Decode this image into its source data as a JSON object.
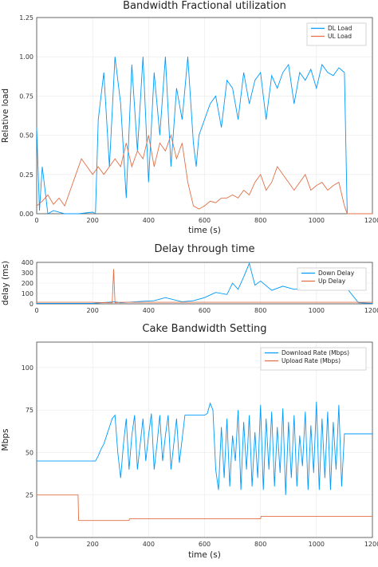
{
  "colors": {
    "series1": "#009afa",
    "series2": "#e26f46"
  },
  "chart_data": [
    {
      "type": "line",
      "title": "Bandwidth Fractional utilization",
      "xlabel": "time (s)",
      "ylabel": "Relative load",
      "xlim": [
        0,
        1200
      ],
      "ylim": [
        0,
        1.25
      ],
      "xticks": [
        "0",
        "200",
        "400",
        "600",
        "800",
        "1000",
        "1200"
      ],
      "yticks": [
        "0.00",
        "0.25",
        "0.50",
        "0.75",
        "1.00",
        "1.25"
      ],
      "grid": true,
      "legend": "top-right",
      "series": [
        {
          "name": "DL Load",
          "x": [
            0,
            10,
            20,
            40,
            60,
            100,
            150,
            200,
            210,
            220,
            240,
            260,
            280,
            300,
            320,
            340,
            360,
            380,
            400,
            420,
            440,
            460,
            480,
            500,
            520,
            540,
            560,
            570,
            580,
            600,
            620,
            640,
            660,
            680,
            700,
            720,
            740,
            760,
            780,
            800,
            820,
            840,
            860,
            880,
            900,
            920,
            940,
            960,
            980,
            1000,
            1020,
            1040,
            1060,
            1080,
            1100,
            1110,
            1150,
            1200
          ],
          "values": [
            0.55,
            0.02,
            0.3,
            0.0,
            0.02,
            0.0,
            0.0,
            0.01,
            0.0,
            0.6,
            0.9,
            0.3,
            1.0,
            0.7,
            0.1,
            0.95,
            0.4,
            1.0,
            0.2,
            0.9,
            0.5,
            1.0,
            0.3,
            0.8,
            0.6,
            1.0,
            0.45,
            0.3,
            0.5,
            0.6,
            0.7,
            0.75,
            0.55,
            0.85,
            0.8,
            0.6,
            0.9,
            0.7,
            0.85,
            0.9,
            0.6,
            0.88,
            0.8,
            0.9,
            0.95,
            0.7,
            0.9,
            0.85,
            0.92,
            0.8,
            0.95,
            0.9,
            0.88,
            0.93,
            0.9,
            0.0,
            0.0,
            0.0
          ]
        },
        {
          "name": "UL Load",
          "x": [
            0,
            20,
            40,
            60,
            80,
            100,
            120,
            140,
            160,
            180,
            200,
            220,
            240,
            260,
            280,
            300,
            320,
            340,
            360,
            380,
            400,
            420,
            440,
            460,
            480,
            500,
            520,
            540,
            560,
            580,
            600,
            620,
            640,
            660,
            680,
            700,
            720,
            740,
            760,
            780,
            800,
            820,
            840,
            860,
            880,
            900,
            920,
            940,
            960,
            980,
            1000,
            1020,
            1040,
            1060,
            1080,
            1100,
            1110,
            1150,
            1200
          ],
          "values": [
            0.05,
            0.08,
            0.12,
            0.06,
            0.1,
            0.05,
            0.15,
            0.25,
            0.35,
            0.3,
            0.25,
            0.3,
            0.25,
            0.3,
            0.35,
            0.3,
            0.45,
            0.3,
            0.4,
            0.35,
            0.5,
            0.3,
            0.45,
            0.4,
            0.5,
            0.35,
            0.45,
            0.2,
            0.05,
            0.03,
            0.05,
            0.08,
            0.07,
            0.1,
            0.1,
            0.12,
            0.1,
            0.15,
            0.12,
            0.2,
            0.25,
            0.15,
            0.2,
            0.3,
            0.25,
            0.2,
            0.15,
            0.2,
            0.25,
            0.15,
            0.18,
            0.2,
            0.15,
            0.18,
            0.2,
            0.05,
            0.0,
            0.0,
            0.0
          ]
        }
      ]
    },
    {
      "type": "line",
      "title": "Delay through time",
      "xlabel": "",
      "ylabel": "delay (ms)",
      "xlim": [
        0,
        1200
      ],
      "ylim": [
        0,
        400
      ],
      "xticks": [
        "0",
        "200",
        "400",
        "600",
        "800",
        "1000",
        "1200"
      ],
      "yticks": [
        "0",
        "100",
        "200",
        "300",
        "400"
      ],
      "grid": true,
      "legend": "top-right",
      "series": [
        {
          "name": "Down Delay",
          "x": [
            0,
            100,
            200,
            280,
            300,
            380,
            420,
            460,
            520,
            560,
            600,
            640,
            680,
            700,
            720,
            740,
            760,
            780,
            800,
            840,
            880,
            920,
            960,
            1000,
            1040,
            1080,
            1100,
            1150,
            1200
          ],
          "values": [
            5,
            5,
            5,
            20,
            10,
            25,
            30,
            60,
            20,
            30,
            60,
            110,
            90,
            200,
            140,
            260,
            390,
            180,
            220,
            130,
            170,
            140,
            150,
            250,
            160,
            170,
            180,
            10,
            5
          ]
        },
        {
          "name": "Up Delay",
          "x": [
            0,
            100,
            200,
            270,
            275,
            280,
            300,
            400,
            500,
            600,
            700,
            800,
            900,
            1000,
            1100,
            1200
          ],
          "values": [
            15,
            15,
            15,
            10,
            335,
            10,
            15,
            15,
            15,
            15,
            15,
            15,
            15,
            15,
            15,
            15
          ]
        }
      ]
    },
    {
      "type": "line",
      "title": "Cake Bandwidth Setting",
      "xlabel": "time (s)",
      "ylabel": "Mbps",
      "xlim": [
        0,
        1200
      ],
      "ylim": [
        0,
        115
      ],
      "xticks": [
        "0",
        "200",
        "400",
        "600",
        "800",
        "1000",
        "1200"
      ],
      "yticks": [
        "0",
        "25",
        "50",
        "75",
        "100"
      ],
      "grid": true,
      "legend": "top-right",
      "series": [
        {
          "name": "Download Rate (Mbps)",
          "x": [
            0,
            210,
            220,
            230,
            240,
            250,
            260,
            270,
            280,
            290,
            300,
            310,
            320,
            330,
            340,
            350,
            360,
            370,
            380,
            390,
            400,
            410,
            420,
            430,
            440,
            450,
            460,
            470,
            480,
            490,
            500,
            510,
            520,
            530,
            540,
            550,
            560,
            570,
            580,
            590,
            600,
            610,
            620,
            630,
            640,
            650,
            660,
            670,
            680,
            690,
            700,
            710,
            720,
            730,
            740,
            750,
            760,
            770,
            780,
            790,
            800,
            810,
            820,
            830,
            840,
            850,
            860,
            870,
            880,
            890,
            900,
            910,
            920,
            930,
            940,
            950,
            960,
            970,
            980,
            990,
            1000,
            1010,
            1020,
            1030,
            1040,
            1050,
            1060,
            1070,
            1080,
            1090,
            1100,
            1200
          ],
          "values": [
            45,
            45,
            48,
            52,
            55,
            60,
            65,
            70,
            72,
            50,
            35,
            55,
            70,
            40,
            60,
            72,
            40,
            55,
            70,
            45,
            60,
            73,
            40,
            55,
            72,
            45,
            60,
            72,
            40,
            55,
            70,
            44,
            58,
            72,
            72,
            72,
            72,
            72,
            72,
            72,
            72,
            73,
            79,
            75,
            40,
            28,
            65,
            35,
            70,
            30,
            60,
            45,
            75,
            28,
            68,
            40,
            72,
            30,
            62,
            35,
            78,
            28,
            70,
            40,
            74,
            30,
            65,
            38,
            76,
            25,
            68,
            35,
            72,
            30,
            60,
            42,
            74,
            28,
            66,
            38,
            80,
            28,
            70,
            35,
            74,
            28,
            68,
            40,
            78,
            30,
            61,
            61
          ]
        },
        {
          "name": "Upload Rate (Mbps)",
          "x": [
            0,
            148,
            150,
            330,
            332,
            800,
            802,
            1200
          ],
          "values": [
            25,
            25,
            10,
            10,
            11,
            11,
            12.5,
            12.5
          ]
        }
      ]
    }
  ]
}
